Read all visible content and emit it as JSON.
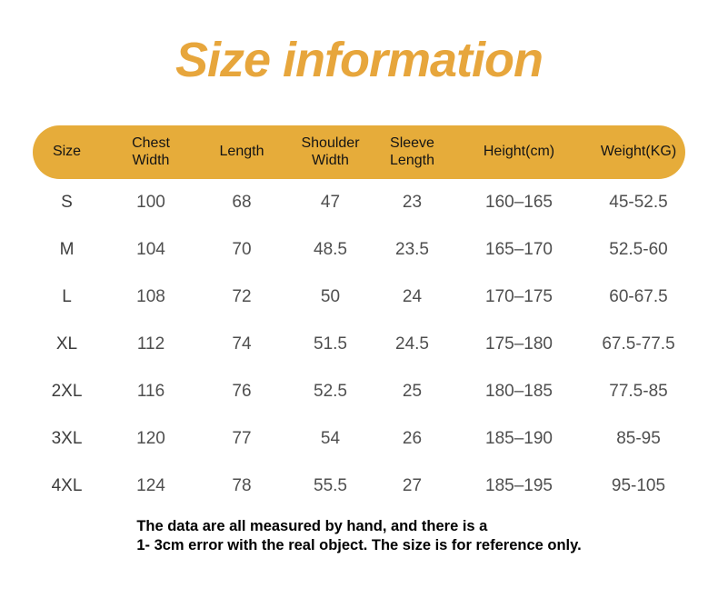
{
  "title": "Size information",
  "colors": {
    "accent_gold": "#E7A63C",
    "header_bar_gold": "#E6AC3A",
    "header_text": "#141414",
    "body_text": "#4F4F4F",
    "footnote_text": "#000000"
  },
  "table": {
    "display_headers": [
      "Size",
      "Chest\nWidth",
      "Length",
      "Shoulder\nWidth",
      "Sleeve\nLength",
      "Height(cm)",
      "Weight(KG)"
    ]
  },
  "chart_data": {
    "type": "table",
    "title": "Size information",
    "columns": [
      "Size",
      "Chest Width",
      "Length",
      "Shoulder Width",
      "Sleeve Length",
      "Height(cm)",
      "Weight(KG)"
    ],
    "rows": [
      [
        "S",
        "100",
        "68",
        "47",
        "23",
        "160–165",
        "45-52.5"
      ],
      [
        "M",
        "104",
        "70",
        "48.5",
        "23.5",
        "165–170",
        "52.5-60"
      ],
      [
        "L",
        "108",
        "72",
        "50",
        "24",
        "170–175",
        "60-67.5"
      ],
      [
        "XL",
        "112",
        "74",
        "51.5",
        "24.5",
        "175–180",
        "67.5-77.5"
      ],
      [
        "2XL",
        "116",
        "76",
        "52.5",
        "25",
        "180–185",
        "77.5-85"
      ],
      [
        "3XL",
        "120",
        "77",
        "54",
        "26",
        "185–190",
        "85-95"
      ],
      [
        "4XL",
        "124",
        "78",
        "55.5",
        "27",
        "185–195",
        "95-105"
      ]
    ]
  },
  "footnote": {
    "line1": "The data are all measured by hand, and there is a",
    "line2": "1- 3cm error with the real object. The size is for reference only."
  }
}
